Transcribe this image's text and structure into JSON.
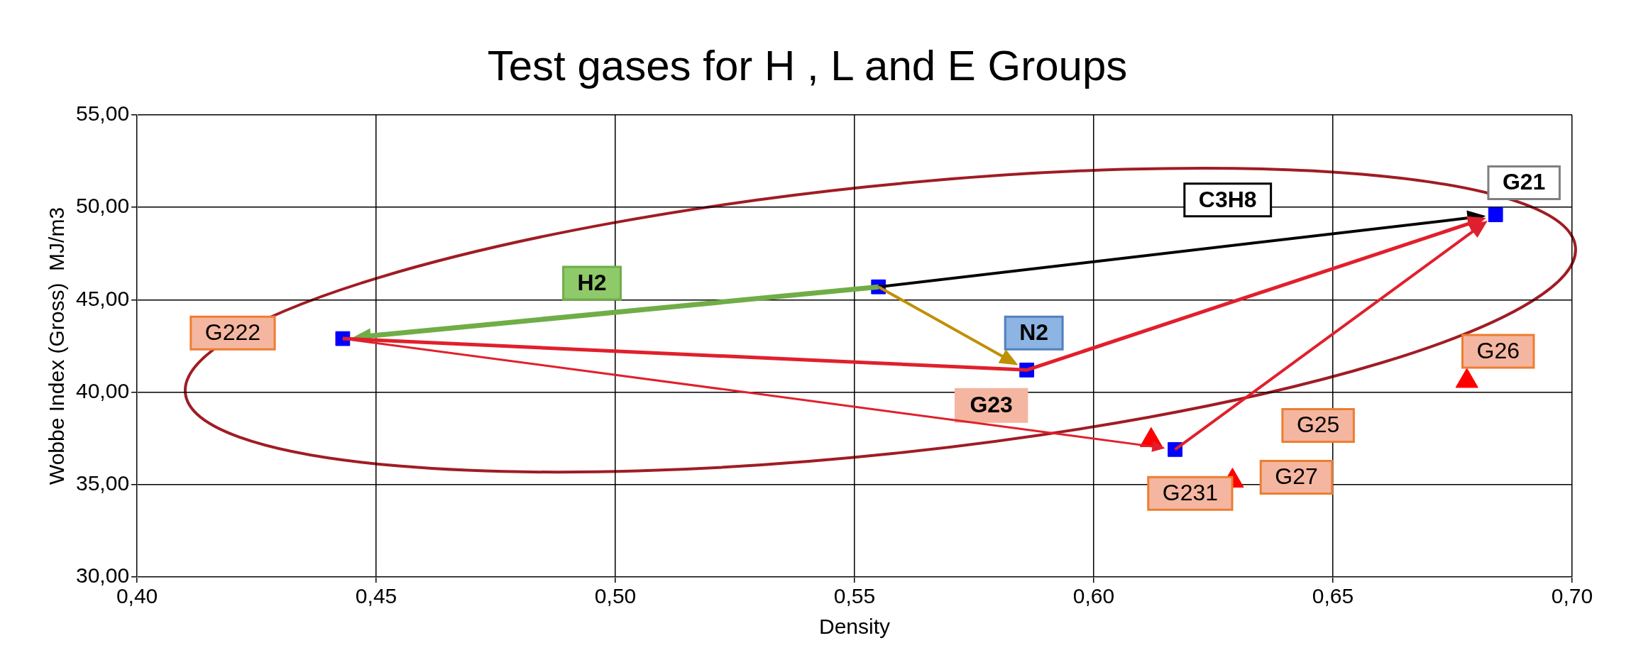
{
  "chart_data": {
    "type": "scatter",
    "title": "Test gases for H , L and E Groups",
    "xlabel": "Density",
    "ylabel": "Wobbe Index (Gross)  MJ/m3",
    "xlim": [
      0.4,
      0.7
    ],
    "xticks": [
      {
        "value": 0.4,
        "label": "0,40"
      },
      {
        "value": 0.45,
        "label": "0,45"
      },
      {
        "value": 0.5,
        "label": "0,50"
      },
      {
        "value": 0.55,
        "label": "0,55"
      },
      {
        "value": 0.6,
        "label": "0,60"
      },
      {
        "value": 0.65,
        "label": "0,65"
      },
      {
        "value": 0.7,
        "label": "0,70"
      }
    ],
    "ylim": [
      30,
      55
    ],
    "yticks": [
      {
        "value": 30,
        "label": "30,00"
      },
      {
        "value": 35,
        "label": "35,00"
      },
      {
        "value": 40,
        "label": "40,00"
      },
      {
        "value": 45,
        "label": "45,00"
      },
      {
        "value": 50,
        "label": "50,00"
      },
      {
        "value": 55,
        "label": "55,00"
      }
    ],
    "grid": true,
    "legend": false,
    "series": [
      {
        "type": "scatter",
        "color": "#0000ff",
        "marker": "square",
        "x": [
          0.443,
          0.555,
          0.586,
          0.617,
          0.684
        ],
        "values": [
          42.9,
          45.7,
          41.2,
          36.9,
          49.6
        ]
      },
      {
        "type": "scatter",
        "color": "#ff0000",
        "marker": "triangle",
        "x": [
          0.612,
          0.629,
          0.678
        ],
        "values": [
          37.4,
          35.2,
          40.6
        ]
      }
    ],
    "annotations": [
      "G222",
      "H2",
      "C3H8",
      {
        "text": "G21",
        "x": 0.684,
        "y": 49.6
      },
      {
        "text": "N2",
        "x": 0.586,
        "y": 41.2
      },
      {
        "text": "G23",
        "x": 0.586,
        "y": 41.2
      },
      {
        "text": "G26",
        "x": 0.678,
        "y": 40.6
      },
      "G25",
      {
        "text": "G27",
        "x": 0.629,
        "y": 35.2
      },
      {
        "text": "G231",
        "x": 0.612,
        "y": 37.4
      }
    ]
  }
}
